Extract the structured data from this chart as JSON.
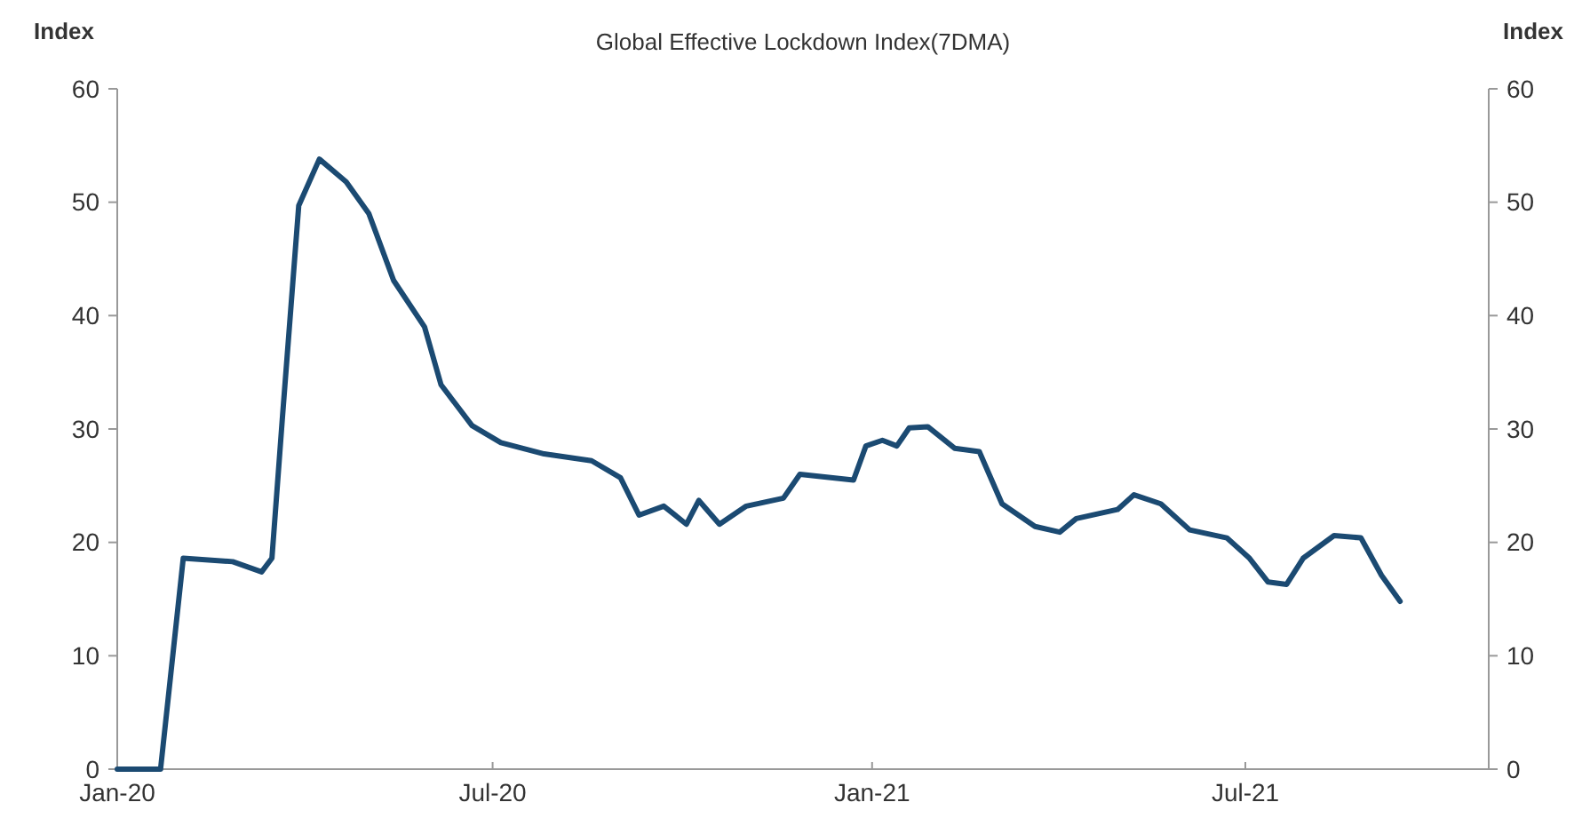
{
  "chart_data": {
    "type": "line",
    "title": "Global Effective Lockdown Index(7DMA)",
    "ylabel": "Index",
    "y2label": "Index",
    "x": [
      "2020-01-01",
      "2020-01-22",
      "2020-02-02",
      "2020-02-26",
      "2020-03-11",
      "2020-03-16",
      "2020-03-21",
      "2020-03-29",
      "2020-04-08",
      "2020-04-21",
      "2020-05-02",
      "2020-05-14",
      "2020-05-29",
      "2020-06-06",
      "2020-06-21",
      "2020-07-05",
      "2020-07-26",
      "2020-08-18",
      "2020-09-01",
      "2020-09-10",
      "2020-09-22",
      "2020-10-03",
      "2020-10-09",
      "2020-10-19",
      "2020-11-01",
      "2020-11-19",
      "2020-11-27",
      "2020-12-23",
      "2020-12-29",
      "2021-01-06",
      "2021-01-13",
      "2021-01-19",
      "2021-01-28",
      "2021-02-10",
      "2021-02-22",
      "2021-03-05",
      "2021-03-21",
      "2021-04-02",
      "2021-04-10",
      "2021-04-30",
      "2021-05-08",
      "2021-05-21",
      "2021-06-04",
      "2021-06-22",
      "2021-07-03",
      "2021-07-12",
      "2021-07-21",
      "2021-07-29",
      "2021-08-13",
      "2021-08-26",
      "2021-09-05",
      "2021-09-14"
    ],
    "series": [
      {
        "color": "#1b4a72",
        "values": [
          0,
          0,
          18.6,
          18.3,
          17.4,
          18.6,
          30.8,
          49.7,
          53.8,
          51.8,
          49,
          43.1,
          39,
          33.9,
          30.3,
          28.8,
          27.8,
          27.2,
          25.7,
          22.4,
          23.2,
          21.6,
          23.7,
          21.6,
          23.2,
          23.9,
          26,
          25.5,
          28.5,
          29,
          28.5,
          30.1,
          30.2,
          28.3,
          28,
          23.4,
          21.4,
          20.9,
          22.1,
          22.9,
          24.2,
          23.4,
          21.1,
          20.4,
          18.6,
          16.5,
          16.3,
          18.6,
          20.6,
          20.4,
          17.1,
          14.8
        ]
      }
    ],
    "xlim": [
      "2020-01-01",
      "2021-10-27"
    ],
    "xticks": [
      {
        "value": "2020-01-01",
        "label": "Jan-20"
      },
      {
        "value": "2020-07-01",
        "label": "Jul-20"
      },
      {
        "value": "2021-01-01",
        "label": "Jan-21"
      },
      {
        "value": "2021-07-01",
        "label": "Jul-21"
      }
    ],
    "ylim": [
      0,
      60
    ],
    "yticks": [
      0,
      10,
      20,
      30,
      40,
      50,
      60
    ],
    "y2lim": [
      0,
      60
    ],
    "y2ticks": [
      0,
      10,
      20,
      30,
      40,
      50,
      60
    ],
    "grid": false,
    "marker": "none",
    "line_style": "solid"
  }
}
